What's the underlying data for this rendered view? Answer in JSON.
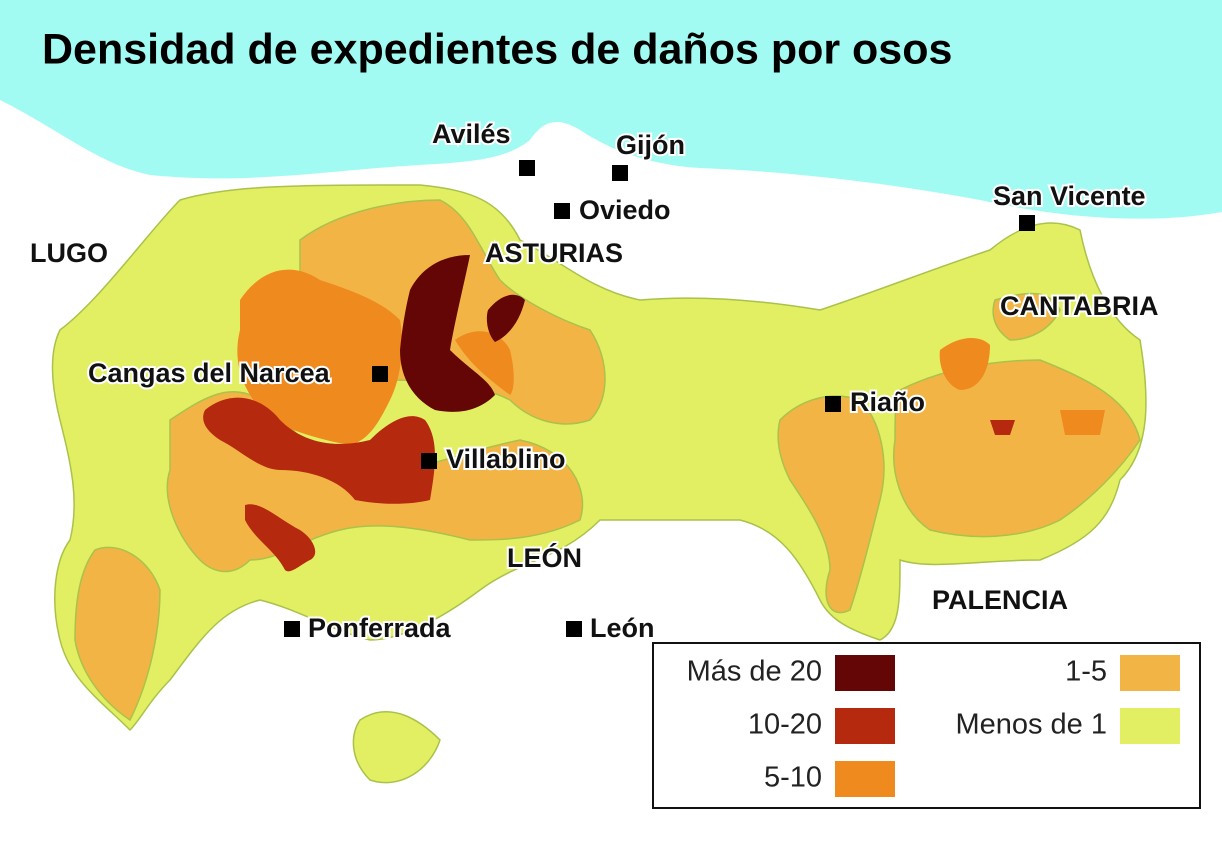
{
  "title": "Densidad de expedientes de daños por osos",
  "cities": [
    "Avilés",
    "Gijón",
    "Oviedo",
    "San Vicente",
    "Cangas del Narcea",
    "Riaño",
    "Villablino",
    "Ponferrada",
    "León"
  ],
  "regions": [
    "LUGO",
    "ASTURIAS",
    "CANTABRIA",
    "LEÓN",
    "PALENCIA"
  ],
  "legend": {
    "items": [
      {
        "label": "Más de 20",
        "color": "#640606"
      },
      {
        "label": "10-20",
        "color": "#b5290f"
      },
      {
        "label": "5-10",
        "color": "#ef8a1f"
      },
      {
        "label": "1-5",
        "color": "#f2b545"
      },
      {
        "label": "Menos de 1",
        "color": "#e3ef63"
      }
    ]
  }
}
